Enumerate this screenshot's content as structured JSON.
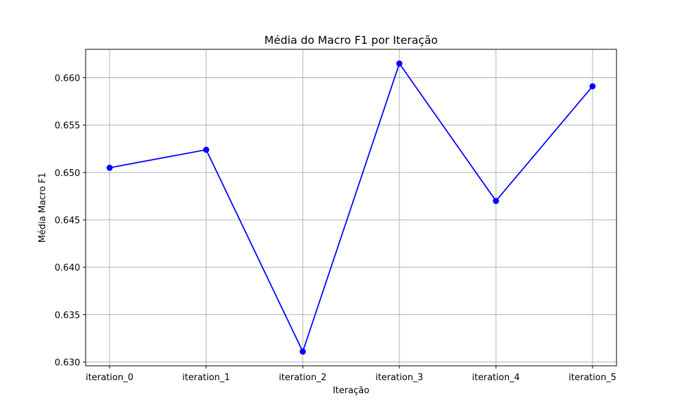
{
  "chart_data": {
    "type": "line",
    "title": "Média do Macro F1 por Iteração",
    "xlabel": "Iteração",
    "ylabel": "Média Macro F1",
    "categories": [
      "iteration_0",
      "iteration_1",
      "iteration_2",
      "iteration_3",
      "iteration_4",
      "iteration_5"
    ],
    "series": [
      {
        "values": [
          0.6505,
          0.6524,
          0.6311,
          0.6615,
          0.647,
          0.6591
        ],
        "color": "#0000ff",
        "marker": "circle"
      }
    ],
    "ylim": [
      0.6296,
      0.663
    ],
    "yticks": [
      0.63,
      0.635,
      0.64,
      0.645,
      0.65,
      0.655,
      0.66
    ],
    "ytick_labels": [
      "0.630",
      "0.635",
      "0.640",
      "0.645",
      "0.650",
      "0.655",
      "0.660"
    ],
    "grid": true
  }
}
